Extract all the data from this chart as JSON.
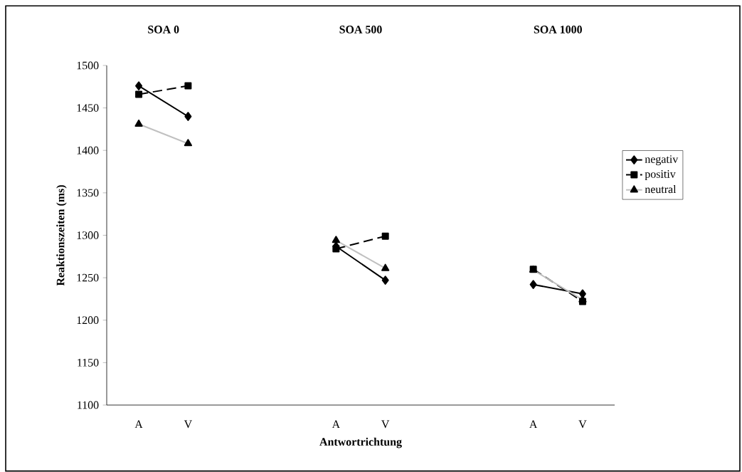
{
  "chart_data": {
    "type": "line",
    "ylabel": "Reaktionszeiten (ms)",
    "xlabel": "Antwortrichtung",
    "categories": [
      "A",
      "V",
      null,
      null,
      "A",
      "V",
      null,
      null,
      "A",
      "V"
    ],
    "annotations": [
      "SOA 0",
      "SOA 500",
      "SOA 1000"
    ],
    "series": [
      {
        "name": "negativ",
        "color": "#000000",
        "marker": "diamond",
        "line_style": "solid",
        "values": [
          1476,
          1440,
          null,
          null,
          1287,
          1247,
          null,
          null,
          1242,
          1231
        ]
      },
      {
        "name": "positiv",
        "color": "#000000",
        "marker": "square",
        "line_style": "dashed",
        "values": [
          1466,
          1476,
          null,
          null,
          1284,
          1299,
          null,
          null,
          1260,
          1222
        ]
      },
      {
        "name": "neutral",
        "color": "#c0c0c0",
        "marker": "triangle",
        "line_style": "solid",
        "values": [
          1431,
          1408,
          null,
          null,
          1294,
          1261,
          null,
          null,
          1259,
          1224
        ]
      }
    ],
    "ylim": [
      1100,
      1500
    ],
    "yticks": [
      1100,
      1150,
      1200,
      1250,
      1300,
      1350,
      1400,
      1450,
      1500
    ],
    "grid": false,
    "legend": "right"
  }
}
